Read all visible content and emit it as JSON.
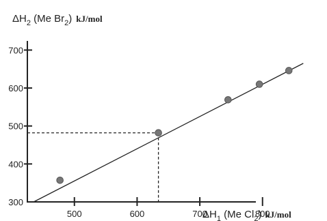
{
  "chart_data": {
    "type": "scatter",
    "title": "",
    "x_axis": {
      "label_prefix": "ΔH",
      "label_index": "1",
      "label_body_open": " (Me Cl",
      "label_body_sub": "2",
      "label_body_close": ")",
      "unit": "kJ/mol",
      "range": [
        425,
        905
      ],
      "ticks": [
        500,
        600,
        700,
        800
      ]
    },
    "y_axis": {
      "label_prefix": "ΔH",
      "label_index": "2",
      "label_body_open": " (Me Br",
      "label_body_sub": "2",
      "label_body_close": ")",
      "unit": "kJ/mol",
      "range": [
        300,
        760
      ],
      "ticks": [
        300,
        400,
        500,
        600,
        700
      ]
    },
    "series": [
      {
        "x": [
          477,
          634,
          745,
          795,
          842
        ],
        "y": [
          357,
          482,
          569,
          610,
          646
        ]
      }
    ],
    "fit_line": {
      "x": [
        435,
        865
      ],
      "y": [
        300,
        665
      ]
    },
    "guides": {
      "x": 634,
      "y": 482
    },
    "grid": false,
    "legend": "none"
  }
}
